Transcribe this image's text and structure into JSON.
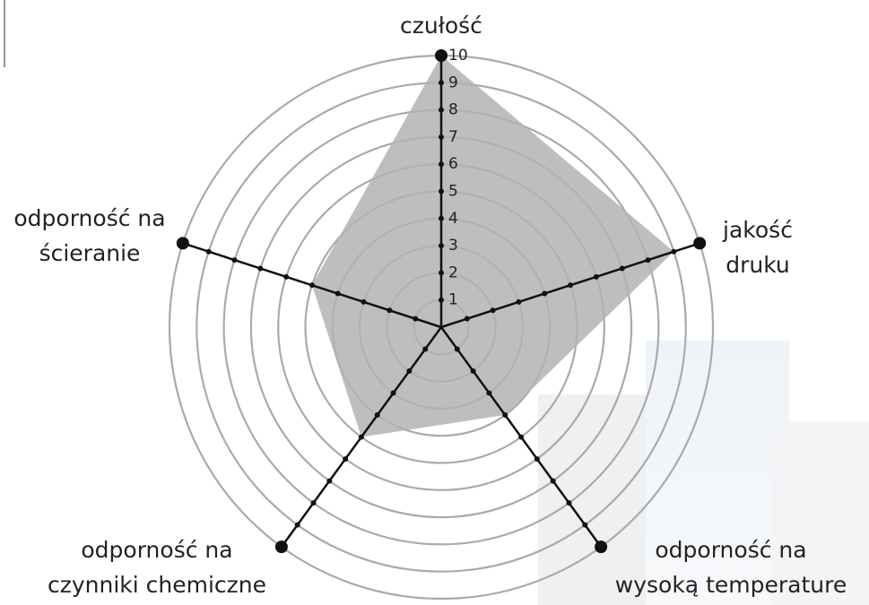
{
  "chart_data": {
    "type": "radar",
    "categories": [
      [
        "czułość"
      ],
      [
        "jakość",
        "druku"
      ],
      [
        "odporność na",
        "wysoką temperature"
      ],
      [
        "odporność na",
        "czynniki chemiczne"
      ],
      [
        "odporność na",
        "ścieranie"
      ]
    ],
    "values": [
      10,
      9,
      4,
      5,
      5
    ],
    "color": "#b3b3b3",
    "rlim": [
      0,
      10
    ],
    "rticks": [
      1,
      2,
      3,
      4,
      5,
      6,
      7,
      8,
      9,
      10
    ]
  }
}
